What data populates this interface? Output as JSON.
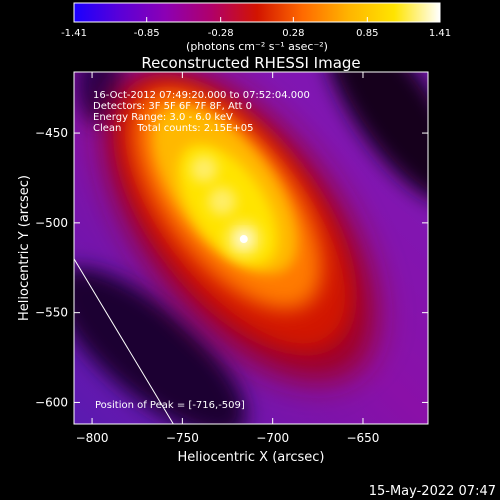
{
  "chart_data": {
    "type": "heatmap",
    "title": "Reconstructed RHESSI Image",
    "xlabel": "Heliocentric X (arcsec)",
    "ylabel": "Heliocentric Y (arcsec)",
    "xlim": [
      -810,
      -614
    ],
    "ylim": [
      -612,
      -416
    ],
    "xticks": [
      -800,
      -750,
      -700,
      -650
    ],
    "yticks": [
      -600,
      -550,
      -500,
      -450
    ],
    "colorbar": {
      "range": [
        -1.41,
        1.41
      ],
      "tick_values": [
        -1.41,
        -0.85,
        -0.28,
        0.28,
        0.85,
        1.41
      ],
      "tick_labels": [
        "-1.41",
        "-0.85",
        "-0.28",
        "0.28",
        "0.85",
        "1.41"
      ],
      "unit_label": "(photons cm⁻² s⁻¹ asec⁻²)",
      "colormap": [
        "#1a00ff",
        "#5a00d8",
        "#8c00b4",
        "#b0006a",
        "#d21400",
        "#ff6a00",
        "#ffb400",
        "#ffe400",
        "#ffffff"
      ]
    },
    "annotations": [
      "16-Oct-2012 07:49:20.000 to 07:52:04.000",
      "Detectors: 3F 5F 6F 7F 8F, Att 0",
      "Energy Range: 3.0 - 6.0 keV",
      "Clean     Total counts: 2.15E+05"
    ],
    "peak": {
      "label": "Position of Peak = [-716,-509]",
      "x": -716,
      "y": -509
    },
    "limb_line": {
      "x": [
        -810,
        -755
      ],
      "y": [
        -520,
        -612
      ]
    },
    "sources": [
      {
        "x": -716,
        "y": -509,
        "intensity": 1.41
      },
      {
        "x": -738,
        "y": -470,
        "intensity": 0.95
      },
      {
        "x": -728,
        "y": -488,
        "intensity": 1.0
      }
    ]
  },
  "footer": {
    "timestamp": "15-May-2022 07:47"
  }
}
